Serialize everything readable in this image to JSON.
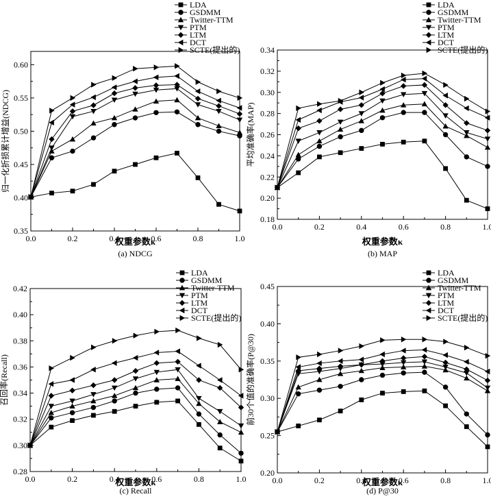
{
  "legend_labels": [
    "LDA",
    "GSDMM",
    "Twitter-TTM",
    "PTM",
    "LTM",
    "DCT",
    "SCTE(提出的)"
  ],
  "chart_data": [
    {
      "type": "line",
      "caption": "(a) NDCG",
      "xlabel": "权重参数κ",
      "ylabel": "归一化折损累计增益(NDCG)",
      "xlim": [
        0,
        1.0
      ],
      "ylim": [
        0.35,
        0.62
      ],
      "xticks": [
        "0.0",
        "0.2",
        "0.4",
        "0.6",
        "0.8",
        "1.0"
      ],
      "yticks": [
        "0.35",
        "0.40",
        "0.45",
        "0.50",
        "0.55",
        "0.60"
      ],
      "ytick_values": [
        0.35,
        0.4,
        0.45,
        0.5,
        0.55,
        0.6
      ],
      "legend": "top-right",
      "x": [
        0,
        0.1,
        0.2,
        0.3,
        0.4,
        0.5,
        0.6,
        0.7,
        0.8,
        0.9,
        1.0
      ],
      "series": [
        {
          "name": "LDA",
          "values": [
            0.401,
            0.407,
            0.41,
            0.42,
            0.44,
            0.45,
            0.46,
            0.467,
            0.43,
            0.39,
            0.38
          ]
        },
        {
          "name": "GSDMM",
          "values": [
            0.401,
            0.46,
            0.47,
            0.49,
            0.51,
            0.52,
            0.528,
            0.529,
            0.51,
            0.5,
            0.493
          ]
        },
        {
          "name": "Twitter-TTM",
          "values": [
            0.401,
            0.47,
            0.488,
            0.512,
            0.52,
            0.533,
            0.545,
            0.547,
            0.52,
            0.508,
            0.498
          ]
        },
        {
          "name": "PTM",
          "values": [
            0.401,
            0.475,
            0.522,
            0.53,
            0.547,
            0.556,
            0.562,
            0.564,
            0.54,
            0.53,
            0.517
          ]
        },
        {
          "name": "LTM",
          "values": [
            0.401,
            0.488,
            0.53,
            0.539,
            0.557,
            0.565,
            0.569,
            0.57,
            0.549,
            0.538,
            0.526
          ]
        },
        {
          "name": "DCT",
          "values": [
            0.401,
            0.513,
            0.54,
            0.551,
            0.566,
            0.575,
            0.581,
            0.583,
            0.56,
            0.546,
            0.535
          ]
        },
        {
          "name": "SCTE(提出的)",
          "values": [
            0.401,
            0.531,
            0.55,
            0.57,
            0.58,
            0.594,
            0.596,
            0.598,
            0.574,
            0.56,
            0.55
          ]
        }
      ]
    },
    {
      "type": "line",
      "caption": "(b) MAP",
      "xlabel": "权重参数κ",
      "ylabel": "平均准确率(MAP)",
      "xlim": [
        0,
        1.0
      ],
      "ylim": [
        0.18,
        0.34
      ],
      "xticks": [
        "0.0",
        "0.2",
        "0.4",
        "0.6",
        "0.8",
        "1.0"
      ],
      "yticks": [
        "0.18",
        "0.20",
        "0.22",
        "0.24",
        "0.26",
        "0.28",
        "0.30",
        "0.32",
        "0.34"
      ],
      "ytick_values": [
        0.18,
        0.2,
        0.22,
        0.24,
        0.26,
        0.28,
        0.3,
        0.32,
        0.34
      ],
      "legend": "top-right",
      "x": [
        0,
        0.1,
        0.2,
        0.3,
        0.4,
        0.5,
        0.6,
        0.7,
        0.8,
        0.9,
        1.0
      ],
      "series": [
        {
          "name": "LDA",
          "values": [
            0.21,
            0.224,
            0.239,
            0.243,
            0.247,
            0.251,
            0.253,
            0.254,
            0.228,
            0.198,
            0.19
          ]
        },
        {
          "name": "GSDMM",
          "values": [
            0.21,
            0.237,
            0.249,
            0.258,
            0.264,
            0.276,
            0.281,
            0.281,
            0.26,
            0.239,
            0.23
          ]
        },
        {
          "name": "Twitter-TTM",
          "values": [
            0.21,
            0.241,
            0.254,
            0.265,
            0.273,
            0.283,
            0.288,
            0.289,
            0.268,
            0.259,
            0.248
          ]
        },
        {
          "name": "PTM",
          "values": [
            0.21,
            0.254,
            0.262,
            0.272,
            0.28,
            0.292,
            0.298,
            0.299,
            0.278,
            0.262,
            0.256
          ]
        },
        {
          "name": "LTM",
          "values": [
            0.21,
            0.266,
            0.273,
            0.284,
            0.288,
            0.299,
            0.306,
            0.307,
            0.288,
            0.271,
            0.264
          ]
        },
        {
          "name": "DCT",
          "values": [
            0.21,
            0.274,
            0.283,
            0.291,
            0.295,
            0.303,
            0.312,
            0.313,
            0.297,
            0.285,
            0.276
          ]
        },
        {
          "name": "SCTE(提出的)",
          "values": [
            0.21,
            0.285,
            0.289,
            0.292,
            0.3,
            0.309,
            0.316,
            0.318,
            0.307,
            0.294,
            0.282
          ]
        }
      ]
    },
    {
      "type": "line",
      "caption": "(c) Recall",
      "xlabel": "权重参数κ",
      "ylabel": "召回率(Recall)",
      "xlim": [
        0,
        1.0
      ],
      "ylim": [
        0.28,
        0.42
      ],
      "xticks": [
        "0.0",
        "0.2",
        "0.4",
        "0.6",
        "0.8",
        "1.0"
      ],
      "yticks": [
        "0.28",
        "0.30",
        "0.32",
        "0.34",
        "0.36",
        "0.38",
        "0.40",
        "0.42"
      ],
      "ytick_values": [
        0.28,
        0.3,
        0.32,
        0.34,
        0.36,
        0.38,
        0.4,
        0.42
      ],
      "legend": "top-right",
      "x": [
        0,
        0.1,
        0.2,
        0.3,
        0.4,
        0.5,
        0.6,
        0.7,
        0.8,
        0.9,
        1.0
      ],
      "series": [
        {
          "name": "LDA",
          "values": [
            0.3,
            0.314,
            0.319,
            0.323,
            0.326,
            0.33,
            0.333,
            0.334,
            0.316,
            0.298,
            0.288
          ]
        },
        {
          "name": "GSDMM",
          "values": [
            0.3,
            0.321,
            0.325,
            0.329,
            0.334,
            0.34,
            0.343,
            0.344,
            0.324,
            0.308,
            0.294
          ]
        },
        {
          "name": "Twitter-TTM",
          "values": [
            0.3,
            0.325,
            0.33,
            0.334,
            0.338,
            0.344,
            0.35,
            0.351,
            0.332,
            0.318,
            0.31
          ]
        },
        {
          "name": "PTM",
          "values": [
            0.3,
            0.33,
            0.334,
            0.339,
            0.344,
            0.351,
            0.356,
            0.358,
            0.336,
            0.326,
            0.315
          ]
        },
        {
          "name": "LTM",
          "values": [
            0.3,
            0.338,
            0.342,
            0.346,
            0.35,
            0.357,
            0.363,
            0.364,
            0.35,
            0.344,
            0.329
          ]
        },
        {
          "name": "DCT",
          "values": [
            0.3,
            0.347,
            0.35,
            0.358,
            0.363,
            0.367,
            0.371,
            0.372,
            0.361,
            0.35,
            0.338
          ]
        },
        {
          "name": "SCTE(提出的)",
          "values": [
            0.3,
            0.359,
            0.367,
            0.375,
            0.38,
            0.384,
            0.387,
            0.388,
            0.382,
            0.377,
            0.358
          ]
        }
      ]
    },
    {
      "type": "line",
      "caption": "(d) P@30",
      "xlabel": "权重参数κ",
      "ylabel": "前30个值的准确率(P@30)",
      "xlim": [
        0,
        1.0
      ],
      "ylim": [
        0.2,
        0.45
      ],
      "xticks": [
        "0.0",
        "0.2",
        "0.4",
        "0.6",
        "0.8",
        "1.0"
      ],
      "yticks": [
        "0.20",
        "0.25",
        "0.30",
        "0.35",
        "0.40",
        "0.45"
      ],
      "ytick_values": [
        0.2,
        0.25,
        0.3,
        0.35,
        0.4,
        0.45
      ],
      "legend": "top-right",
      "x": [
        0,
        0.1,
        0.2,
        0.3,
        0.4,
        0.5,
        0.6,
        0.7,
        0.8,
        0.9,
        1.0
      ],
      "series": [
        {
          "name": "LDA",
          "values": [
            0.255,
            0.263,
            0.271,
            0.283,
            0.298,
            0.307,
            0.309,
            0.31,
            0.29,
            0.262,
            0.235
          ]
        },
        {
          "name": "GSDMM",
          "values": [
            0.255,
            0.306,
            0.311,
            0.316,
            0.325,
            0.331,
            0.334,
            0.335,
            0.315,
            0.279,
            0.251
          ]
        },
        {
          "name": "Twitter-TTM",
          "values": [
            0.255,
            0.315,
            0.325,
            0.333,
            0.337,
            0.341,
            0.342,
            0.343,
            0.338,
            0.327,
            0.31
          ]
        },
        {
          "name": "PTM",
          "values": [
            0.255,
            0.333,
            0.336,
            0.34,
            0.345,
            0.346,
            0.348,
            0.349,
            0.342,
            0.334,
            0.314
          ]
        },
        {
          "name": "LTM",
          "values": [
            0.255,
            0.337,
            0.34,
            0.343,
            0.345,
            0.35,
            0.354,
            0.356,
            0.348,
            0.339,
            0.324
          ]
        },
        {
          "name": "DCT",
          "values": [
            0.255,
            0.342,
            0.347,
            0.35,
            0.352,
            0.359,
            0.364,
            0.365,
            0.358,
            0.349,
            0.336
          ]
        },
        {
          "name": "SCTE(提出的)",
          "values": [
            0.255,
            0.355,
            0.359,
            0.364,
            0.37,
            0.378,
            0.379,
            0.379,
            0.376,
            0.368,
            0.357
          ]
        }
      ]
    }
  ]
}
